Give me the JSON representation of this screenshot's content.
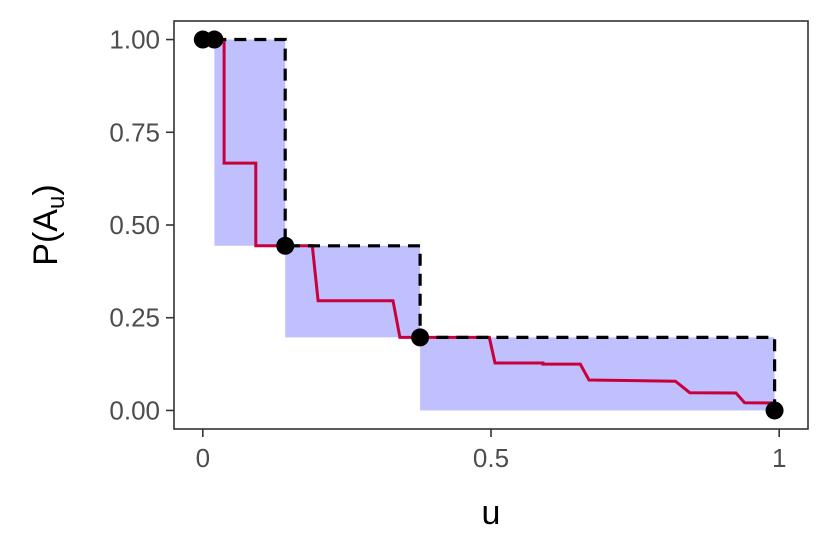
{
  "chart_data": {
    "type": "line",
    "xlabel": "u",
    "ylabel": {
      "main": "P(A",
      "subscript": "u",
      "close": ")"
    },
    "xlim": [
      -0.05,
      1.05
    ],
    "ylim": [
      -0.05,
      1.05
    ],
    "x_ticks": [
      {
        "value": 0,
        "label": "0"
      },
      {
        "value": 0.5,
        "label": "0.5"
      },
      {
        "value": 1,
        "label": "1"
      }
    ],
    "y_ticks": [
      {
        "value": 0,
        "label": "0.00"
      },
      {
        "value": 0.25,
        "label": "0.25"
      },
      {
        "value": 0.5,
        "label": "0.50"
      },
      {
        "value": 0.75,
        "label": "0.75"
      },
      {
        "value": 1,
        "label": "1.00"
      }
    ],
    "grid": false,
    "colors": {
      "band": "#c0c0ff",
      "line": "#c8003c",
      "dashed": "#000000",
      "points": "#000000"
    },
    "bands": [
      {
        "x0": 0.02,
        "x1": 0.143,
        "y0": 0.444,
        "y1": 1.0
      },
      {
        "x0": 0.143,
        "x1": 0.377,
        "y0": 0.197,
        "y1": 0.444
      },
      {
        "x0": 0.377,
        "x1": 0.992,
        "y0": 0.0,
        "y1": 0.197
      }
    ],
    "upper_step": {
      "x": [
        0.02,
        0.143,
        0.143,
        0.377,
        0.377,
        0.992,
        0.992
      ],
      "y": [
        1.0,
        1.0,
        0.444,
        0.444,
        0.197,
        0.197,
        0.0
      ]
    },
    "estimate_line": {
      "x": [
        0.027,
        0.037,
        0.037,
        0.092,
        0.092,
        0.143,
        0.143,
        0.19,
        0.19,
        0.2,
        0.2,
        0.33,
        0.33,
        0.342,
        0.342,
        0.377,
        0.377,
        0.497,
        0.497,
        0.507,
        0.507,
        0.59,
        0.59,
        0.655,
        0.655,
        0.67,
        0.67,
        0.82,
        0.82,
        0.845,
        0.845,
        0.925,
        0.925,
        0.94,
        0.94,
        0.992
      ],
      "y": [
        1.0,
        1.0,
        0.667,
        0.667,
        0.444,
        0.444,
        0.444,
        0.444,
        0.444,
        0.296,
        0.296,
        0.296,
        0.296,
        0.197,
        0.197,
        0.197,
        0.197,
        0.197,
        0.197,
        0.128,
        0.128,
        0.128,
        0.125,
        0.125,
        0.125,
        0.082,
        0.082,
        0.079,
        0.079,
        0.048,
        0.048,
        0.047,
        0.047,
        0.021,
        0.021,
        0.02
      ]
    },
    "points": [
      {
        "x": 0.0,
        "y": 1.0
      },
      {
        "x": 0.02,
        "y": 1.0
      },
      {
        "x": 0.143,
        "y": 0.444
      },
      {
        "x": 0.377,
        "y": 0.197
      },
      {
        "x": 0.992,
        "y": 0.0
      }
    ]
  }
}
